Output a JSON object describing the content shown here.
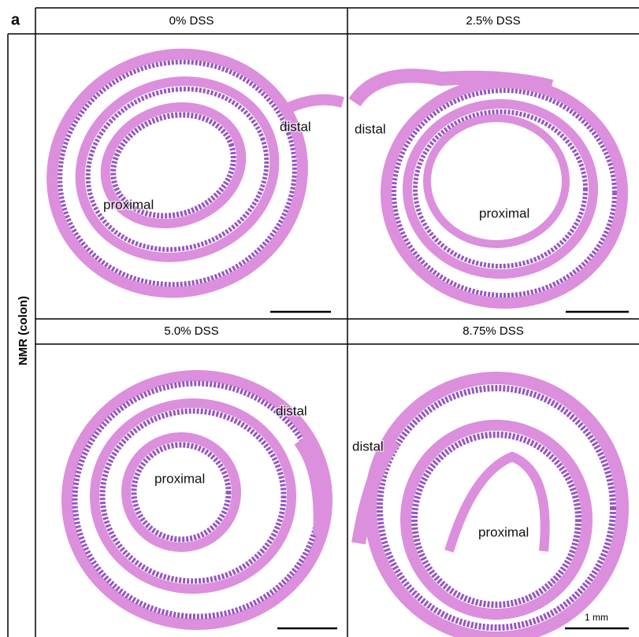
{
  "panel_label": "a",
  "row_label": "NMR (colon)",
  "panels": [
    {
      "title": "0% DSS",
      "distal_label": "distal",
      "proximal_label": "proximal"
    },
    {
      "title": "2.5% DSS",
      "distal_label": "distal",
      "proximal_label": "proximal"
    },
    {
      "title": "5.0% DSS",
      "distal_label": "distal",
      "proximal_label": "proximal"
    },
    {
      "title": "8.75% DSS",
      "distal_label": "distal",
      "proximal_label": "proximal"
    }
  ],
  "scale_bar_label": "1 mm"
}
